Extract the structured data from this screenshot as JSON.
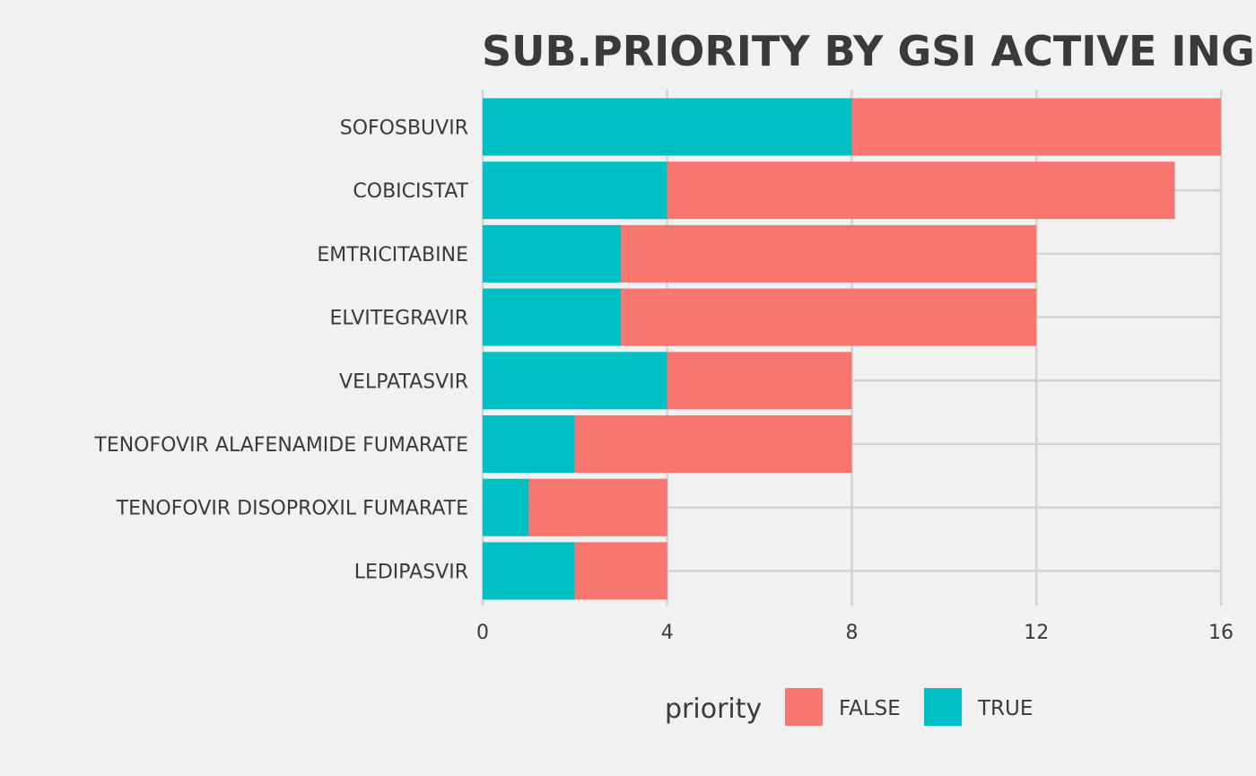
{
  "chart_data": {
    "type": "bar",
    "orientation": "horizontal",
    "stacked": true,
    "title": "SUB.PRIORITY BY GSI ACTIVE INGREDIENT",
    "xlabel": "",
    "ylabel": "",
    "categories": [
      "SOFOSBUVIR",
      "COBICISTAT",
      "EMTRICITABINE",
      "ELVITEGRAVIR",
      "VELPATASVIR",
      "TENOFOVIR ALAFENAMIDE FUMARATE",
      "TENOFOVIR DISOPROXIL FUMARATE",
      "LEDIPASVIR"
    ],
    "series": [
      {
        "name": "TRUE",
        "color": "#00bfc4",
        "values": [
          8,
          4,
          3,
          3,
          4,
          2,
          1,
          2
        ]
      },
      {
        "name": "FALSE",
        "color": "#f8766d",
        "values": [
          8,
          11,
          9,
          9,
          4,
          6,
          3,
          2
        ]
      }
    ],
    "xlim": [
      0,
      16
    ],
    "xticks": [
      "0",
      "4",
      "8",
      "12",
      "16"
    ],
    "grid": true,
    "legend": {
      "title": "priority",
      "position": "bottom",
      "entries": [
        {
          "label": "FALSE",
          "color": "#f8766d"
        },
        {
          "label": "TRUE",
          "color": "#00bfc4"
        }
      ]
    }
  }
}
